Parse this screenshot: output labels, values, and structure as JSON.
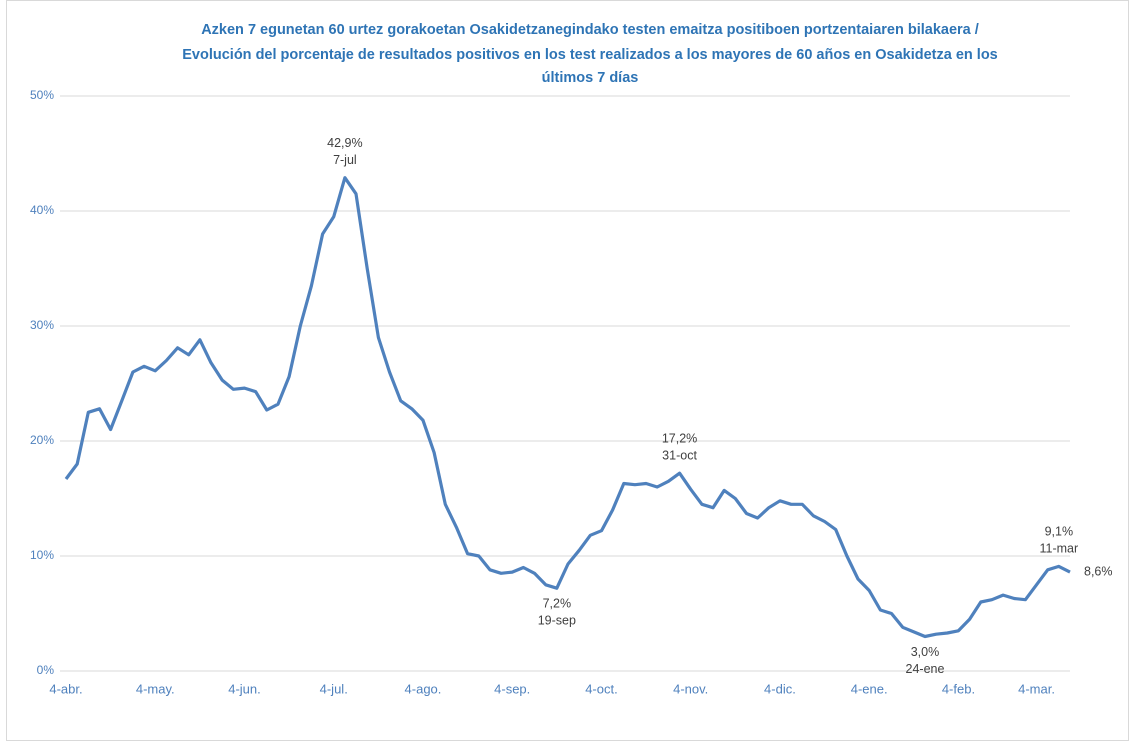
{
  "chart_data": {
    "type": "line",
    "title": [
      "Azken 7 egunetan 60 urtez gorakoetan Osakidetzanegindako testen emaitza positiboen portzentaiaren bilakaera /",
      "Evolución del porcentaje de resultados positivos en los test realizados a los mayores de 60 años en Osakidetza en los",
      "últimos 7 días"
    ],
    "categories": [
      "4-abr.",
      null,
      null,
      null,
      null,
      null,
      null,
      null,
      "4-may.",
      null,
      null,
      null,
      null,
      null,
      null,
      null,
      "4-jun.",
      null,
      null,
      null,
      null,
      null,
      null,
      null,
      "4-jul.",
      "7-jul",
      null,
      null,
      null,
      null,
      null,
      null,
      "4-ago.",
      null,
      null,
      null,
      null,
      null,
      null,
      null,
      "4-sep.",
      null,
      null,
      null,
      "19-sep",
      null,
      null,
      null,
      "4-oct.",
      null,
      null,
      null,
      null,
      null,
      null,
      "31-oct",
      "4-nov.",
      null,
      null,
      null,
      null,
      null,
      null,
      null,
      "4-dic.",
      null,
      null,
      null,
      null,
      null,
      null,
      null,
      "4-ene.",
      null,
      null,
      null,
      null,
      "24-ene",
      null,
      null,
      "4-feb.",
      null,
      null,
      null,
      null,
      null,
      null,
      "4-mar.",
      null,
      "11-mar",
      null
    ],
    "series": [
      {
        "name": null,
        "color": "#4f81bd",
        "values": [
          16.7,
          18.0,
          22.5,
          22.8,
          21.0,
          23.5,
          26.0,
          26.5,
          26.1,
          27.0,
          28.1,
          27.5,
          28.8,
          26.8,
          25.3,
          24.5,
          24.6,
          24.3,
          22.7,
          23.2,
          25.6,
          30.0,
          33.5,
          38.0,
          39.5,
          42.9,
          41.5,
          35.0,
          29.0,
          26.0,
          23.5,
          22.8,
          21.8,
          19.0,
          14.5,
          12.5,
          10.2,
          10.0,
          8.8,
          8.5,
          8.6,
          9.0,
          8.5,
          7.5,
          7.2,
          9.3,
          10.5,
          11.8,
          12.2,
          14.0,
          16.3,
          16.2,
          16.3,
          16.0,
          16.5,
          17.2,
          15.8,
          14.5,
          14.2,
          15.7,
          15.0,
          13.7,
          13.3,
          14.2,
          14.8,
          14.5,
          14.5,
          13.5,
          13.0,
          12.3,
          10.0,
          8.0,
          7.0,
          5.3,
          5.0,
          3.8,
          3.4,
          3.0,
          3.2,
          3.3,
          3.5,
          4.5,
          6.0,
          6.2,
          6.6,
          6.3,
          6.2,
          7.5,
          8.8,
          9.1,
          8.6
        ],
        "value_labels": [
          null,
          null,
          null,
          null,
          null,
          null,
          null,
          null,
          null,
          null,
          null,
          null,
          null,
          null,
          null,
          null,
          null,
          null,
          null,
          null,
          null,
          null,
          null,
          null,
          null,
          "42,9%",
          null,
          null,
          null,
          null,
          null,
          null,
          null,
          null,
          null,
          null,
          null,
          null,
          null,
          null,
          null,
          null,
          null,
          null,
          "7,2%",
          null,
          null,
          null,
          null,
          null,
          null,
          null,
          null,
          null,
          null,
          "17,2%",
          null,
          null,
          null,
          null,
          null,
          null,
          null,
          null,
          null,
          null,
          null,
          null,
          null,
          null,
          null,
          null,
          null,
          null,
          null,
          null,
          null,
          "3,0%",
          null,
          null,
          null,
          null,
          null,
          null,
          null,
          null,
          null,
          null,
          null,
          "9,1%",
          "8,6%"
        ]
      }
    ],
    "ylim": [
      0,
      50
    ],
    "yticks": [
      {
        "value": 0,
        "label": "0%"
      },
      {
        "value": 10,
        "label": "10%"
      },
      {
        "value": 20,
        "label": "20%"
      },
      {
        "value": 30,
        "label": "30%"
      },
      {
        "value": 40,
        "label": "40%"
      },
      {
        "value": 50,
        "label": "50%"
      }
    ],
    "grid": true
  }
}
